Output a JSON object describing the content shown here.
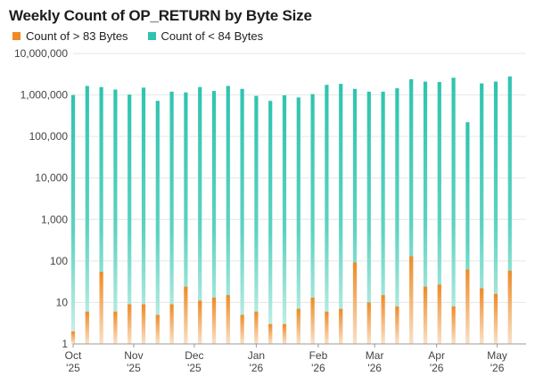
{
  "colors": {
    "orange": "#F08A24",
    "orange_fade": "#FBE0C6",
    "teal": "#2EC4B0",
    "teal_fade": "#D4F2EC",
    "grid": "#E6E6E6",
    "axis": "#9A9A9A"
  },
  "chart_data": {
    "type": "bar",
    "title": "Weekly Count of OP_RETURN by Byte Size",
    "yscale": "log",
    "ylim": [
      1,
      10000000
    ],
    "grid": true,
    "legend_position": "top-left",
    "y_ticks": [
      {
        "value": 1,
        "label": "1"
      },
      {
        "value": 10,
        "label": "10"
      },
      {
        "value": 100,
        "label": "100"
      },
      {
        "value": 1000,
        "label": "1,000"
      },
      {
        "value": 10000,
        "label": "10,000"
      },
      {
        "value": 100000,
        "label": "100,000"
      },
      {
        "value": 1000000,
        "label": "1,000,000"
      },
      {
        "value": 10000000,
        "label": "10,000,000"
      }
    ],
    "x_ticks": [
      {
        "index": 0,
        "month": "Oct",
        "year": "'25"
      },
      {
        "index": 4.3,
        "month": "Nov",
        "year": "'25"
      },
      {
        "index": 8.6,
        "month": "Dec",
        "year": "'25"
      },
      {
        "index": 13,
        "month": "Jan",
        "year": "'26"
      },
      {
        "index": 17.4,
        "month": "Feb",
        "year": "'26"
      },
      {
        "index": 21.4,
        "month": "Mar",
        "year": "'26"
      },
      {
        "index": 25.8,
        "month": "Apr",
        "year": "'26"
      },
      {
        "index": 30.1,
        "month": "May",
        "year": "'26"
      }
    ],
    "series": [
      {
        "name": "Count of > 83 Bytes",
        "values": [
          2,
          6,
          55,
          6,
          9,
          9,
          5,
          9,
          24,
          11,
          13,
          15,
          5,
          6,
          3,
          3,
          7,
          13,
          6,
          7,
          92,
          10,
          15,
          8,
          130,
          24,
          27,
          8,
          62,
          22,
          16,
          58
        ]
      },
      {
        "name": "Count of < 84 Bytes",
        "values": [
          1000000,
          1650000,
          1550000,
          1350000,
          1020000,
          1500000,
          720000,
          1200000,
          1150000,
          1550000,
          1250000,
          1650000,
          1400000,
          950000,
          720000,
          980000,
          870000,
          1050000,
          1750000,
          1850000,
          1400000,
          1200000,
          1200000,
          1450000,
          2400000,
          2100000,
          2050000,
          2600000,
          220000,
          1900000,
          2100000,
          2800000
        ]
      }
    ]
  }
}
